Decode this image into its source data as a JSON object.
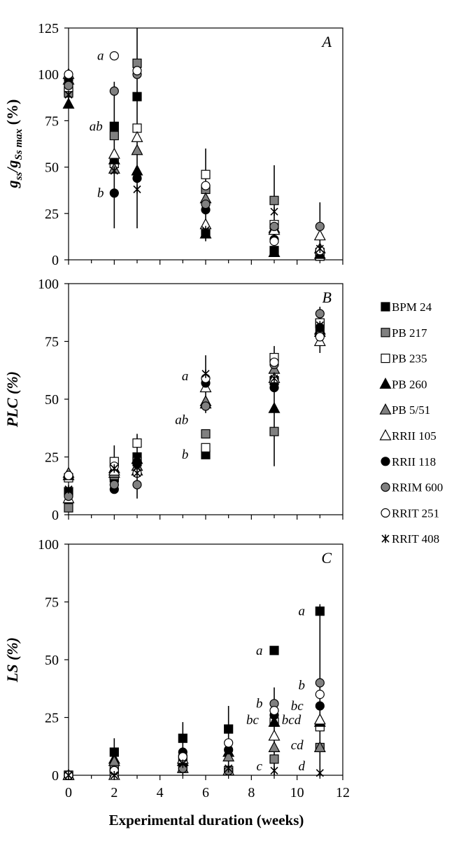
{
  "chart_data": {
    "type": "scatter",
    "xlabel": "Experimental duration (weeks)",
    "x_ticks": [
      "0",
      "2",
      "4",
      "6",
      "8",
      "10",
      "12"
    ],
    "xlim": [
      0,
      12
    ],
    "legend_position": "right",
    "series": [
      {
        "name": "BPM 24",
        "marker": "square",
        "fill": "#000000"
      },
      {
        "name": "PB 217",
        "marker": "square",
        "fill": "#808080"
      },
      {
        "name": "PB 235",
        "marker": "square",
        "fill": "#ffffff"
      },
      {
        "name": "PB 260",
        "marker": "triangle",
        "fill": "#000000"
      },
      {
        "name": "PB 5/51",
        "marker": "triangle",
        "fill": "#808080"
      },
      {
        "name": "RRII 105",
        "marker": "triangle",
        "fill": "#ffffff"
      },
      {
        "name": "RRII 118",
        "marker": "circle",
        "fill": "#000000"
      },
      {
        "name": "RRIM 600",
        "marker": "circle",
        "fill": "#808080"
      },
      {
        "name": "RRIT 251",
        "marker": "circle",
        "fill": "#ffffff"
      },
      {
        "name": "RRIT 408",
        "marker": "star",
        "fill": "#000000"
      }
    ],
    "panels": [
      {
        "letter": "A",
        "ylabel_main": "g",
        "ylabel_main_sub": "ss",
        "ylabel_mid": "/g",
        "ylabel_mid_sub": "Ss max",
        "ylabel_tail": " (%)",
        "ylim": [
          0,
          125
        ],
        "y_ticks": [
          "0",
          "25",
          "50",
          "75",
          "100",
          "125"
        ],
        "annotations": [
          {
            "text": "a",
            "x": 1.4,
            "y": 110
          },
          {
            "text": "ab",
            "x": 1.2,
            "y": 72
          },
          {
            "text": "b",
            "x": 1.4,
            "y": 36
          }
        ],
        "errorbars": [
          [
            2,
            17,
            96
          ],
          [
            3,
            17,
            125
          ],
          [
            6,
            10,
            60
          ],
          [
            9,
            10,
            51
          ],
          [
            11,
            2,
            31
          ]
        ],
        "points": [
          [
            0,
            [
              0,
              91
            ],
            [
              1,
              90
            ],
            [
              2,
              93
            ],
            [
              3,
              84
            ],
            [
              4,
              97
            ],
            [
              5,
              100
            ],
            [
              6,
              97
            ],
            [
              7,
              94
            ],
            [
              8,
              100
            ],
            [
              9,
              89
            ]
          ],
          [
            2,
            [
              0,
              72
            ],
            [
              1,
              67
            ],
            [
              2,
              52
            ],
            [
              3,
              54
            ],
            [
              4,
              49
            ],
            [
              5,
              57
            ],
            [
              6,
              36
            ],
            [
              7,
              91
            ],
            [
              8,
              110
            ],
            [
              9,
              48
            ]
          ],
          [
            3,
            [
              0,
              88
            ],
            [
              1,
              106
            ],
            [
              2,
              71
            ],
            [
              3,
              48
            ],
            [
              4,
              59
            ],
            [
              5,
              66
            ],
            [
              6,
              44
            ],
            [
              7,
              100
            ],
            [
              8,
              102
            ],
            [
              9,
              38
            ]
          ],
          [
            6,
            [
              0,
              14
            ],
            [
              1,
              38
            ],
            [
              2,
              46
            ],
            [
              3,
              14
            ],
            [
              4,
              33
            ],
            [
              5,
              19
            ],
            [
              6,
              27
            ],
            [
              7,
              30
            ],
            [
              8,
              40
            ],
            [
              9,
              16
            ]
          ],
          [
            9,
            [
              0,
              5
            ],
            [
              1,
              32
            ],
            [
              2,
              19
            ],
            [
              3,
              4
            ],
            [
              4,
              17
            ],
            [
              5,
              16
            ],
            [
              6,
              11
            ],
            [
              7,
              18
            ],
            [
              8,
              10
            ],
            [
              9,
              26
            ]
          ],
          [
            11,
            [
              0,
              2
            ],
            [
              1,
              4
            ],
            [
              2,
              2
            ],
            [
              3,
              3
            ],
            [
              4,
              6
            ],
            [
              5,
              13
            ],
            [
              6,
              5
            ],
            [
              7,
              18
            ],
            [
              8,
              5
            ],
            [
              9,
              6
            ]
          ]
        ]
      },
      {
        "letter": "B",
        "ylabel": "PLC (%)",
        "ylim": [
          0,
          100
        ],
        "y_ticks": [
          "0",
          "25",
          "50",
          "75",
          "100"
        ],
        "annotations": [
          {
            "text": "a",
            "x": 5.1,
            "y": 60
          },
          {
            "text": "ab",
            "x": 4.95,
            "y": 41
          },
          {
            "text": "b",
            "x": 5.1,
            "y": 26
          }
        ],
        "errorbars": [
          [
            2,
            11,
            30
          ],
          [
            3,
            7,
            35
          ],
          [
            6,
            44,
            69
          ],
          [
            9,
            21,
            73
          ],
          [
            11,
            70,
            90
          ]
        ],
        "points": [
          [
            0,
            [
              0,
              10
            ],
            [
              1,
              3
            ],
            [
              2,
              16
            ],
            [
              3,
              17
            ],
            [
              4,
              18
            ],
            [
              5,
              7
            ],
            [
              6,
              9
            ],
            [
              7,
              8
            ],
            [
              8,
              17
            ],
            [
              9,
              11
            ]
          ],
          [
            2,
            [
              0,
              16
            ],
            [
              1,
              17
            ],
            [
              2,
              23
            ],
            [
              3,
              20
            ],
            [
              4,
              18
            ],
            [
              5,
              19
            ],
            [
              6,
              11
            ],
            [
              7,
              13
            ],
            [
              8,
              21
            ],
            [
              9,
              20
            ]
          ],
          [
            3,
            [
              0,
              25
            ],
            [
              1,
              23
            ],
            [
              2,
              31
            ],
            [
              3,
              24
            ],
            [
              4,
              21
            ],
            [
              5,
              19
            ],
            [
              6,
              22
            ],
            [
              7,
              13
            ],
            [
              8,
              18
            ],
            [
              9,
              18
            ]
          ],
          [
            6,
            [
              0,
              26
            ],
            [
              1,
              35
            ],
            [
              2,
              29
            ],
            [
              3,
              48
            ],
            [
              4,
              49
            ],
            [
              5,
              55
            ],
            [
              6,
              57
            ],
            [
              7,
              47
            ],
            [
              8,
              59
            ],
            [
              9,
              61
            ]
          ],
          [
            9,
            [
              0,
              58
            ],
            [
              1,
              36
            ],
            [
              2,
              68
            ],
            [
              3,
              46
            ],
            [
              4,
              63
            ],
            [
              5,
              59
            ],
            [
              6,
              55
            ],
            [
              7,
              65
            ],
            [
              8,
              66
            ],
            [
              9,
              59
            ]
          ],
          [
            11,
            [
              0,
              81
            ],
            [
              1,
              83
            ],
            [
              2,
              83
            ],
            [
              3,
              80
            ],
            [
              4,
              79
            ],
            [
              5,
              75
            ],
            [
              6,
              81
            ],
            [
              7,
              87
            ],
            [
              8,
              77
            ],
            [
              9,
              82
            ]
          ]
        ]
      },
      {
        "letter": "C",
        "ylabel": "LS (%)",
        "ylim": [
          0,
          100
        ],
        "y_ticks": [
          "0",
          "25",
          "50",
          "75",
          "100"
        ],
        "annotations": [
          {
            "text": "a",
            "x": 10.2,
            "y": 71
          },
          {
            "text": "a",
            "x": 8.35,
            "y": 54
          },
          {
            "text": "b",
            "x": 8.35,
            "y": 31
          },
          {
            "text": "bc",
            "x": 8.05,
            "y": 24
          },
          {
            "text": "c",
            "x": 8.35,
            "y": 4
          },
          {
            "text": "b",
            "x": 10.2,
            "y": 39
          },
          {
            "text": "bc",
            "x": 10.0,
            "y": 30
          },
          {
            "text": "bcd",
            "x": 9.75,
            "y": 24
          },
          {
            "text": "cd",
            "x": 10.0,
            "y": 13
          },
          {
            "text": "d",
            "x": 10.2,
            "y": 4
          }
        ],
        "errorbars": [
          [
            2,
            0,
            16
          ],
          [
            5,
            0,
            23
          ],
          [
            7,
            0,
            30
          ],
          [
            9,
            0,
            38
          ],
          [
            11,
            0,
            74
          ]
        ],
        "points": [
          [
            0,
            [
              0,
              0
            ],
            [
              1,
              0
            ],
            [
              2,
              0
            ],
            [
              3,
              0
            ],
            [
              4,
              0
            ],
            [
              5,
              0
            ],
            [
              6,
              0
            ],
            [
              7,
              0
            ],
            [
              8,
              0
            ],
            [
              9,
              0
            ]
          ],
          [
            2,
            [
              0,
              10
            ],
            [
              1,
              3
            ],
            [
              2,
              1
            ],
            [
              3,
              7
            ],
            [
              4,
              6
            ],
            [
              5,
              0
            ],
            [
              6,
              2
            ],
            [
              7,
              2
            ],
            [
              8,
              2
            ],
            [
              9,
              0
            ]
          ],
          [
            5,
            [
              0,
              16
            ],
            [
              1,
              3
            ],
            [
              2,
              7
            ],
            [
              3,
              6
            ],
            [
              4,
              3
            ],
            [
              5,
              7
            ],
            [
              6,
              10
            ],
            [
              7,
              3
            ],
            [
              8,
              8
            ],
            [
              9,
              5
            ]
          ],
          [
            7,
            [
              0,
              20
            ],
            [
              1,
              2
            ],
            [
              2,
              2
            ],
            [
              3,
              10
            ],
            [
              4,
              8
            ],
            [
              5,
              2
            ],
            [
              6,
              11
            ],
            [
              7,
              2
            ],
            [
              8,
              14
            ],
            [
              9,
              3
            ]
          ],
          [
            9,
            [
              0,
              54
            ],
            [
              1,
              7
            ],
            [
              2,
              23
            ],
            [
              3,
              23
            ],
            [
              4,
              12
            ],
            [
              5,
              17
            ],
            [
              6,
              26
            ],
            [
              7,
              31
            ],
            [
              8,
              28
            ],
            [
              9,
              2
            ]
          ],
          [
            11,
            [
              0,
              71
            ],
            [
              1,
              12
            ],
            [
              2,
              21
            ],
            [
              3,
              23
            ],
            [
              4,
              12
            ],
            [
              5,
              24
            ],
            [
              6,
              30
            ],
            [
              7,
              40
            ],
            [
              8,
              35
            ],
            [
              9,
              1
            ]
          ]
        ]
      }
    ]
  }
}
